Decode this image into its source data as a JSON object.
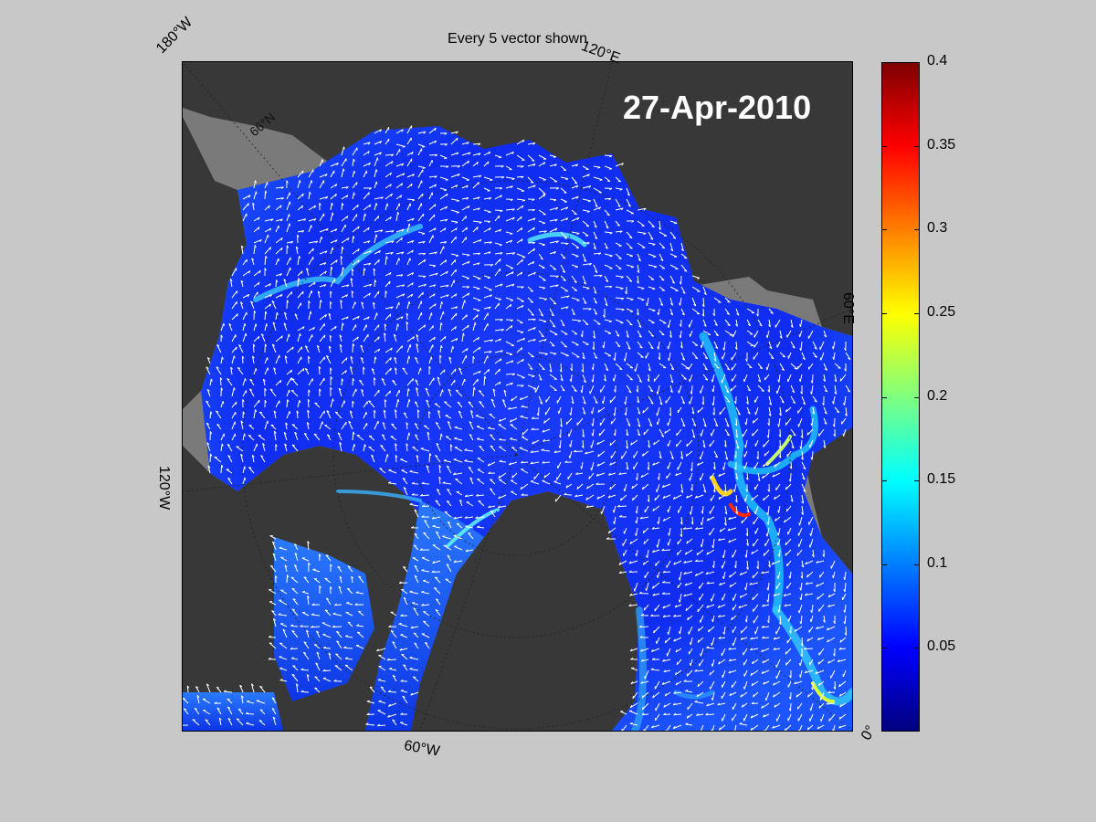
{
  "figure": {
    "title": "Every 5 vector shown",
    "date": "27-Apr-2010"
  },
  "map": {
    "graticule_labels": {
      "lon_180w": "180°W",
      "lon_120e": "120°E",
      "lon_60e": "60°E",
      "lon_120w": "120°W",
      "lon_60w": "60°W",
      "lon_0": "0°",
      "lat_66n": "66°N"
    },
    "colors": {
      "land": "#383838",
      "outside_domain": "#7a7a7a",
      "background": "#c8c8c8",
      "vector": "#ffffff"
    }
  },
  "colorbar": {
    "colormap": "jet",
    "min": 0,
    "max": 0.4,
    "ticks": [
      "0.05",
      "0.1",
      "0.15",
      "0.2",
      "0.25",
      "0.3",
      "0.35",
      "0.4"
    ],
    "colors": [
      "#00007f",
      "#0000ff",
      "#007fff",
      "#00ffff",
      "#7fff7f",
      "#ffff00",
      "#ff7f00",
      "#ff0000",
      "#7f0000"
    ]
  }
}
